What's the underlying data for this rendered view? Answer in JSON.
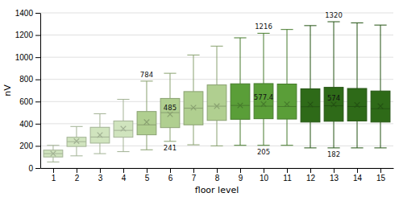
{
  "chart_data": {
    "type": "box",
    "xlabel": "floor level",
    "ylabel": "nV",
    "x": [
      1,
      2,
      3,
      4,
      5,
      6,
      7,
      8,
      9,
      10,
      11,
      12,
      13,
      14,
      15
    ],
    "xlim": [
      0.45,
      15.55
    ],
    "xticks": [
      1,
      2,
      3,
      4,
      5,
      6,
      7,
      8,
      9,
      10,
      11,
      12,
      13,
      14,
      15
    ],
    "ylim": [
      0,
      1400
    ],
    "yticks": [
      0,
      200,
      400,
      600,
      800,
      1000,
      1200,
      1400
    ],
    "grid": "y",
    "colors": [
      "#d0e4be",
      "#d0e4be",
      "#d0e4be",
      "#d0e4be",
      "#b0cf90",
      "#b0cf90",
      "#b0cf90",
      "#b0cf90",
      "#5a9e38",
      "#5a9e38",
      "#5a9e38",
      "#2e6a18",
      "#2e6a18",
      "#2e6a18",
      "#2e6a18"
    ],
    "boxes": [
      {
        "whislo": 55,
        "q1": 100,
        "med": 130,
        "q3": 162,
        "whishi": 205,
        "mean": 130
      },
      {
        "whislo": 110,
        "q1": 195,
        "med": 238,
        "q3": 278,
        "whishi": 375,
        "mean": 243
      },
      {
        "whislo": 130,
        "q1": 225,
        "med": 280,
        "q3": 368,
        "whishi": 490,
        "mean": 298
      },
      {
        "whislo": 148,
        "q1": 278,
        "med": 340,
        "q3": 425,
        "whishi": 620,
        "mean": 355
      },
      {
        "whislo": 165,
        "q1": 300,
        "med": 390,
        "q3": 510,
        "whishi": 784,
        "mean": 415
      },
      {
        "whislo": 241,
        "q1": 365,
        "med": 500,
        "q3": 628,
        "whishi": 855,
        "mean": 485
      },
      {
        "whislo": 210,
        "q1": 390,
        "med": 540,
        "q3": 690,
        "whishi": 1020,
        "mean": 545
      },
      {
        "whislo": 200,
        "q1": 430,
        "med": 558,
        "q3": 750,
        "whishi": 1100,
        "mean": 558
      },
      {
        "whislo": 205,
        "q1": 440,
        "med": 565,
        "q3": 760,
        "whishi": 1175,
        "mean": 565
      },
      {
        "whislo": 205,
        "q1": 445,
        "med": 558,
        "q3": 762,
        "whishi": 1216,
        "mean": 577
      },
      {
        "whislo": 205,
        "q1": 442,
        "med": 555,
        "q3": 758,
        "whishi": 1250,
        "mean": 576
      },
      {
        "whislo": 182,
        "q1": 415,
        "med": 553,
        "q3": 715,
        "whishi": 1285,
        "mean": 574
      },
      {
        "whislo": 182,
        "q1": 422,
        "med": 562,
        "q3": 728,
        "whishi": 1320,
        "mean": 574
      },
      {
        "whislo": 182,
        "q1": 425,
        "med": 555,
        "q3": 718,
        "whishi": 1310,
        "mean": 570
      },
      {
        "whislo": 182,
        "q1": 415,
        "med": 535,
        "q3": 695,
        "whishi": 1290,
        "mean": 558
      }
    ],
    "annotations": [
      {
        "x": 5,
        "text": "784",
        "value": 784,
        "position": "above"
      },
      {
        "x": 6,
        "text": "485",
        "value": 485,
        "position": "above"
      },
      {
        "x": 6,
        "text": "241",
        "value": 241,
        "position": "below"
      },
      {
        "x": 10,
        "text": "1216",
        "value": 1216,
        "position": "above"
      },
      {
        "x": 10,
        "text": "577.4",
        "value": 577,
        "position": "above"
      },
      {
        "x": 10,
        "text": "205",
        "value": 205,
        "position": "below"
      },
      {
        "x": 13,
        "text": "1320",
        "value": 1320,
        "position": "above"
      },
      {
        "x": 13,
        "text": "574",
        "value": 574,
        "position": "above"
      },
      {
        "x": 13,
        "text": "182",
        "value": 182,
        "position": "below"
      }
    ]
  }
}
